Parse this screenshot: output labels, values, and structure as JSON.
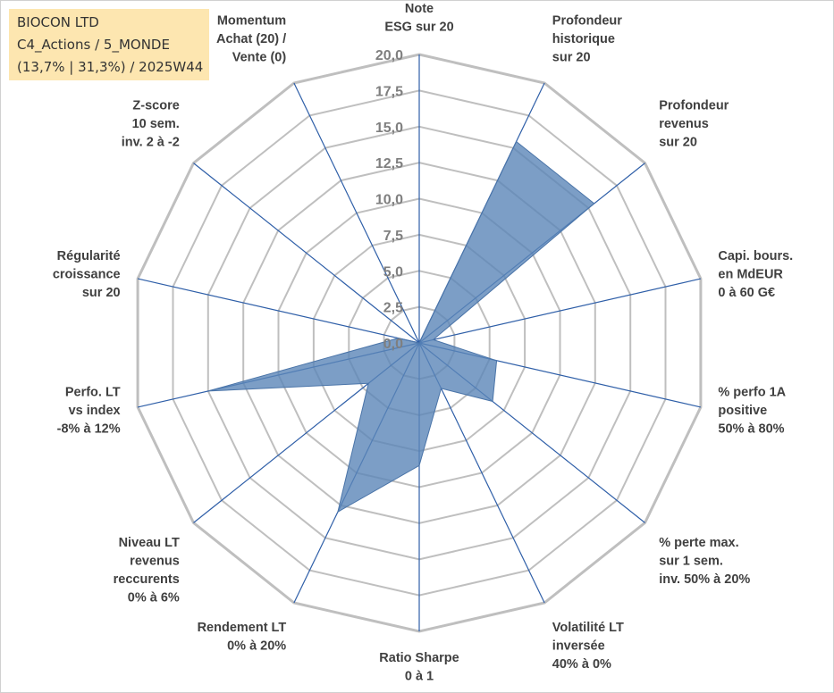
{
  "info_box": {
    "line1": "BIOCON LTD",
    "line2": "C4_Actions / 5_MONDE",
    "line3": "(13,7% | 31,3%) / 2025W44"
  },
  "chart_data": {
    "type": "radar",
    "title": "",
    "r_range": [
      0,
      20
    ],
    "ticks": [
      "0,0",
      "2,5",
      "5,0",
      "7,5",
      "10,0",
      "12,5",
      "15,0",
      "17,5",
      "20,0"
    ],
    "gridlines": true,
    "colors": {
      "fill": "#5b86b8",
      "stroke": "#4a74a8",
      "axis": "#2f5fa8",
      "grid": "#bfbfbf",
      "ticks": "#7f7f7f"
    },
    "axes": [
      {
        "label": [
          "Note",
          "ESG sur 20"
        ],
        "value": 0
      },
      {
        "label": [
          "Profondeur",
          "historique",
          "sur 20"
        ],
        "value": 15.5
      },
      {
        "label": [
          "Profondeur",
          "revenus",
          "sur 20"
        ],
        "value": 15.5
      },
      {
        "label": [
          "Capi. bours.",
          "en MdEUR",
          "0 à 60 G€"
        ],
        "value": 1
      },
      {
        "label": [
          "% perfo 1A",
          "positive",
          "50% à 80%"
        ],
        "value": 5.5
      },
      {
        "label": [
          "% perte max.",
          "sur 1 sem.",
          "inv. 50% à 20%"
        ],
        "value": 6.5
      },
      {
        "label": [
          "Volatilité LT",
          "inversée",
          "40% à 0%"
        ],
        "value": 3.5
      },
      {
        "label": [
          "Ratio Sharpe",
          "0 à 1"
        ],
        "value": 8.5
      },
      {
        "label": [
          "Rendement LT",
          "0% à 20%"
        ],
        "value": 13
      },
      {
        "label": [
          "Niveau LT",
          "revenus",
          "reccurents",
          "0% à 6%"
        ],
        "value": 4.5
      },
      {
        "label": [
          "Perfo. LT",
          "vs index",
          "-8% à 12%"
        ],
        "value": 15
      },
      {
        "label": [
          "Régularité",
          "croissance",
          "sur 20"
        ],
        "value": 1.5
      },
      {
        "label": [
          "Z-score",
          "10 sem.",
          "inv. 2 à -2"
        ],
        "value": 0
      },
      {
        "label": [
          "Momentum",
          "Achat (20) /",
          "Vente (0)"
        ],
        "value": 0
      }
    ]
  }
}
